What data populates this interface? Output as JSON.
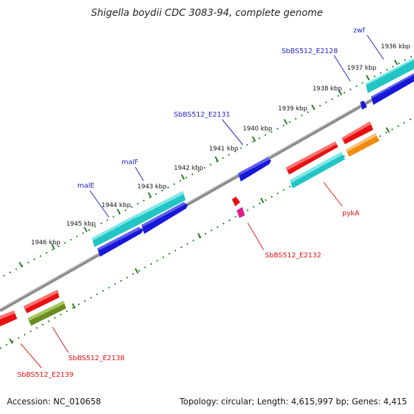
{
  "title": "Shigella boydii CDC 3083-94, complete genome",
  "footer": {
    "accession": "Accession: NC_010658",
    "summary": "Topology: circular; Length: 4,615,997 bp; Genes: 4,415"
  },
  "ticks": [
    "1936 kbp",
    "1937 kbp",
    "1938 kbp",
    "1939 kbp",
    "1940 kbp",
    "1941 kbp",
    "1942 kbp",
    "1943 kbp",
    "1944 kbp",
    "1945 kbp",
    "1946 kbp"
  ],
  "gene_labels": [
    "zwf",
    "SbBS512_E2128",
    "SbBS512_E2131",
    "malF",
    "malE",
    "pykA",
    "SbBS512_E2132",
    "SbBS512_E2138",
    "SbBS512_E2139"
  ],
  "colors": {
    "backbone": "#8c8c8c",
    "tick": "#1e7a1e",
    "cyan": "#22c4c4",
    "blue": "#1818d8",
    "red": "#e81010",
    "orange": "#f08c10",
    "olive": "#6a8c20",
    "magenta": "#e01c8c",
    "label_blue": "#1d1dc8",
    "label_red": "#e01010"
  }
}
